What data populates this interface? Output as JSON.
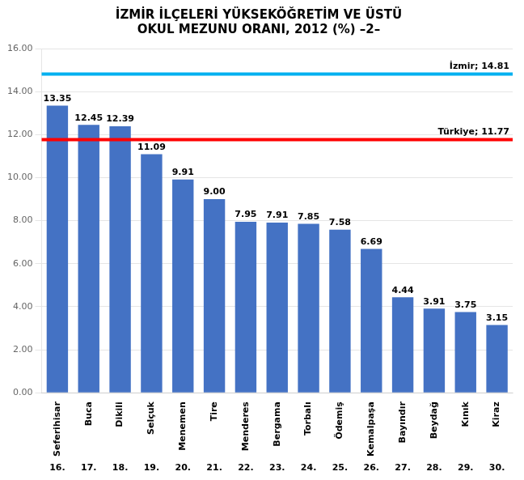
{
  "chart_data": {
    "type": "bar",
    "title": [
      "İZMİR İLÇELERİ YÜKSEKÖĞRETİM VE ÜSTÜ",
      "OKUL MEZUNU ORANI, 2012 (%) –2–"
    ],
    "categories": [
      "Seferihisar",
      "Buca",
      "Dikili",
      "Selçuk",
      "Menemen",
      "Tire",
      "Menderes",
      "Bergama",
      "Torbalı",
      "Ödemiş",
      "Kemalpaşa",
      "Bayındır",
      "Beydağ",
      "Kınık",
      "Kiraz"
    ],
    "category_numbers": [
      "16.",
      "17.",
      "18.",
      "19.",
      "20.",
      "21.",
      "22.",
      "23.",
      "24.",
      "25.",
      "26.",
      "27.",
      "28.",
      "29.",
      "30."
    ],
    "values": [
      13.35,
      12.45,
      12.39,
      11.09,
      9.91,
      9.0,
      7.95,
      7.91,
      7.85,
      7.58,
      6.69,
      4.44,
      3.91,
      3.75,
      3.15
    ],
    "value_labels": [
      "13.35",
      "12.45",
      "12.39",
      "11.09",
      "9.91",
      "9.00",
      "7.95",
      "7.91",
      "7.85",
      "7.58",
      "6.69",
      "4.44",
      "3.91",
      "3.75",
      "3.15"
    ],
    "color": "#4472C4",
    "data_labels": true,
    "reference_lines": [
      {
        "value": 14.81,
        "label": "İzmir; 14.81",
        "color": "#00B0F0"
      },
      {
        "value": 11.77,
        "label": "Türkiye; 11.77",
        "color": "#FF0000"
      }
    ],
    "ylim": [
      0,
      16.0
    ],
    "yticks": [
      {
        "value": 0,
        "label": "0.00"
      },
      {
        "value": 2,
        "label": "2.00"
      },
      {
        "value": 4,
        "label": "4.00"
      },
      {
        "value": 6,
        "label": "6.00"
      },
      {
        "value": 8,
        "label": "8.00"
      },
      {
        "value": 10,
        "label": "10.00"
      },
      {
        "value": 12,
        "label": "12.00"
      },
      {
        "value": 14,
        "label": "14.00"
      },
      {
        "value": 16,
        "label": "16.00"
      }
    ],
    "grid": true
  }
}
